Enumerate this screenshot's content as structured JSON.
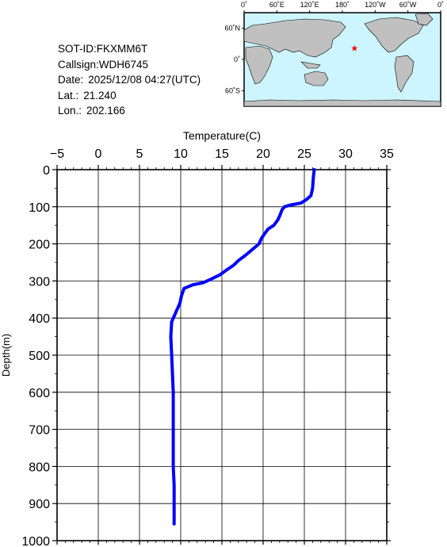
{
  "info": {
    "sot_id": "SOT-ID:FKXMM6T",
    "callsign": "Callsign:WDH6745",
    "date_label": "Date:",
    "date_value": "2025/12/08 04:27(UTC)",
    "lat_label": "Lat.:",
    "lat_value": "21.240",
    "lon_label": "Lon.:",
    "lon_value": "202.166"
  },
  "map": {
    "lon_ticks": [
      "0˚",
      "60˚E",
      "120˚E",
      "180˚",
      "120˚W",
      "60˚W",
      "0˚"
    ],
    "lat_ticks": [
      "60˚N",
      "0˚",
      "60˚S"
    ],
    "ocean_color": "#ccf5ff",
    "land_color": "#c0c0c0",
    "marker": {
      "lat": 21.24,
      "lon": 202.166,
      "symbol": "star",
      "color": "#ff0000"
    }
  },
  "chart_data": {
    "type": "line",
    "xlabel": "Temperature(C)",
    "ylabel": "Depth(m)",
    "xlim": [
      -5,
      35
    ],
    "ylim": [
      0,
      1000
    ],
    "y_inverted": true,
    "x_axis_position": "top",
    "grid": true,
    "x_ticks": [
      -5,
      0,
      5,
      10,
      15,
      20,
      25,
      30,
      35
    ],
    "y_ticks": [
      0,
      100,
      200,
      300,
      400,
      500,
      600,
      700,
      800,
      900,
      1000
    ],
    "series": [
      {
        "color": "#0000ff",
        "x": [
          26.2,
          26.1,
          26.0,
          25.8,
          25.3,
          24.6,
          23.2,
          22.6,
          22.3,
          22.1,
          21.8,
          21.3,
          20.6,
          20.2,
          19.8,
          19.5,
          18.7,
          17.9,
          17.0,
          16.4,
          15.6,
          14.8,
          13.7,
          12.7,
          11.5,
          10.4,
          10.1,
          9.9,
          9.5,
          9.2,
          8.9,
          8.8,
          8.9,
          9.0,
          9.1,
          9.1,
          9.1,
          9.2,
          9.2,
          9.2
        ],
        "y": [
          0,
          20,
          50,
          70,
          80,
          90,
          96,
          100,
          108,
          120,
          135,
          150,
          160,
          172,
          185,
          200,
          215,
          230,
          245,
          258,
          270,
          283,
          295,
          305,
          310,
          320,
          340,
          360,
          380,
          395,
          410,
          450,
          500,
          550,
          600,
          700,
          800,
          850,
          900,
          955
        ]
      }
    ]
  }
}
